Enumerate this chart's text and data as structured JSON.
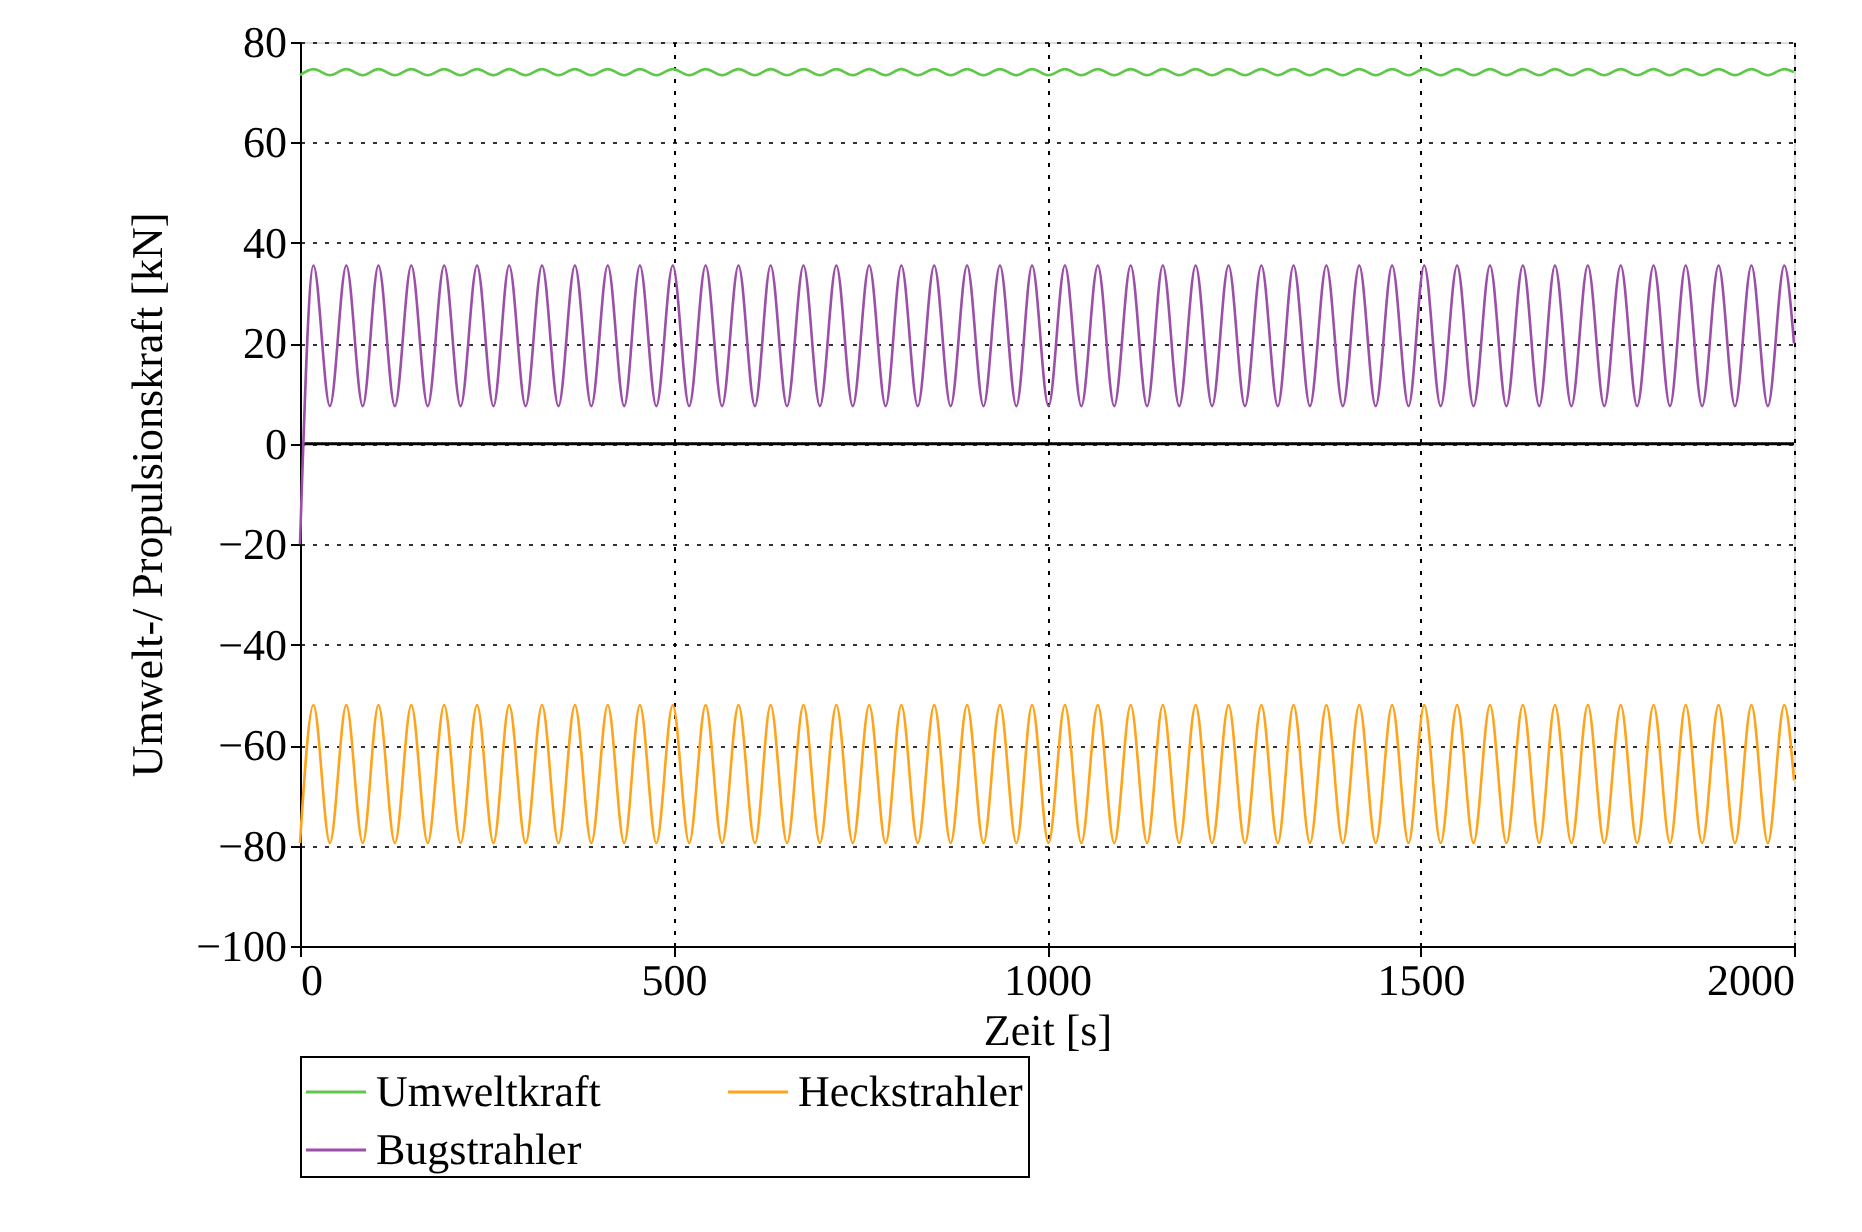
{
  "chart_data": {
    "type": "line",
    "xlabel": "Zeit [s]",
    "ylabel": "Umwelt-/ Propulsionskraft [kN]",
    "x": [
      0,
      18,
      40,
      62,
      84,
      105,
      127,
      149,
      171,
      193,
      215,
      237,
      259,
      280,
      302,
      324,
      346,
      368,
      390,
      412,
      434,
      455,
      477,
      499,
      521,
      543,
      565,
      587,
      609,
      630,
      652,
      674,
      696,
      718,
      740,
      762,
      784,
      805,
      827,
      849,
      871,
      893,
      915,
      937,
      959,
      980,
      1002,
      1024,
      1046,
      1068,
      1090,
      1112,
      1134,
      1155,
      1177,
      1199,
      1221,
      1243,
      1265,
      1287,
      1309,
      1330,
      1352,
      1374,
      1396,
      1418,
      1440,
      1462,
      1484,
      1505,
      1527,
      1549,
      1571,
      1593,
      1615,
      1637,
      1659,
      1680,
      1702,
      1724,
      1746,
      1768,
      1790,
      1812,
      1834,
      1855,
      1877,
      1899,
      1921,
      1943,
      1965,
      1987,
      2000
    ],
    "series": [
      {
        "name": "Umweltkraft",
        "color": "#5fc84a",
        "values": [
          73.4,
          74.6,
          73.4,
          74.6,
          73.4,
          74.6,
          73.4,
          74.6,
          73.4,
          74.6,
          73.4,
          74.6,
          73.4,
          74.6,
          73.4,
          74.6,
          73.4,
          74.6,
          73.4,
          74.6,
          73.4,
          74.6,
          73.4,
          74.6,
          73.4,
          74.6,
          73.4,
          74.6,
          73.4,
          74.6,
          73.4,
          74.6,
          73.4,
          74.6,
          73.4,
          74.6,
          73.4,
          74.6,
          73.4,
          74.6,
          73.4,
          74.6,
          73.4,
          74.6,
          73.4,
          74.6,
          73.4,
          74.6,
          73.4,
          74.6,
          73.4,
          74.6,
          73.4,
          74.6,
          73.4,
          74.6,
          73.4,
          74.6,
          73.4,
          74.6,
          73.4,
          74.6,
          73.4,
          74.6,
          73.4,
          74.6,
          73.4,
          74.6,
          73.4,
          74.6,
          73.4,
          74.6,
          73.4,
          74.6,
          73.4,
          74.6,
          73.4,
          74.6,
          73.4,
          74.6,
          73.4,
          74.6,
          73.4,
          74.6,
          73.4,
          74.6,
          73.4,
          74.6,
          73.4,
          74.6,
          73.4,
          74.6,
          74.0
        ]
      },
      {
        "name": "Heckstrahler",
        "color": "#ffa31a",
        "values": [
          -79.5,
          -52,
          -79.5,
          -52,
          -79.5,
          -52,
          -79.5,
          -52,
          -79.5,
          -52,
          -79.5,
          -52,
          -79.5,
          -52,
          -79.5,
          -52,
          -79.5,
          -52,
          -79.5,
          -52,
          -79.5,
          -52,
          -79.5,
          -52,
          -79.5,
          -52,
          -79.5,
          -52,
          -79.5,
          -52,
          -79.5,
          -52,
          -79.5,
          -52,
          -79.5,
          -52,
          -79.5,
          -52,
          -79.5,
          -52,
          -79.5,
          -52,
          -79.5,
          -52,
          -79.5,
          -52,
          -79.5,
          -52,
          -79.5,
          -52,
          -79.5,
          -52,
          -79.5,
          -52,
          -79.5,
          -52,
          -79.5,
          -52,
          -79.5,
          -52,
          -79.5,
          -52,
          -79.5,
          -52,
          -79.5,
          -52,
          -79.5,
          -52,
          -79.5,
          -52,
          -79.5,
          -52,
          -79.5,
          -52,
          -79.5,
          -52,
          -79.5,
          -52,
          -79.5,
          -52,
          -79.5,
          -52,
          -79.5,
          -52,
          -79.5,
          -52,
          -79.5,
          -52,
          -79.5,
          -52,
          -79.5,
          -52,
          -67
        ]
      },
      {
        "name": "Bugstrahler",
        "color": "#9b4fa8",
        "values": [
          -20,
          35.5,
          7.5,
          35.5,
          7.5,
          35.5,
          7.5,
          35.5,
          7.5,
          35.5,
          7.5,
          35.5,
          7.5,
          35.5,
          7.5,
          35.5,
          7.5,
          35.5,
          7.5,
          35.5,
          7.5,
          35.5,
          7.5,
          35.5,
          7.5,
          35.5,
          7.5,
          35.5,
          7.5,
          35.5,
          7.5,
          35.5,
          7.5,
          35.5,
          7.5,
          35.5,
          7.5,
          35.5,
          7.5,
          35.5,
          7.5,
          35.5,
          7.5,
          35.5,
          7.5,
          35.5,
          7.5,
          35.5,
          7.5,
          35.5,
          7.5,
          35.5,
          7.5,
          35.5,
          7.5,
          35.5,
          7.5,
          35.5,
          7.5,
          35.5,
          7.5,
          35.5,
          7.5,
          35.5,
          7.5,
          35.5,
          7.5,
          35.5,
          7.5,
          35.5,
          7.5,
          35.5,
          7.5,
          35.5,
          7.5,
          35.5,
          7.5,
          35.5,
          7.5,
          35.5,
          7.5,
          35.5,
          7.5,
          35.5,
          7.5,
          35.5,
          7.5,
          35.5,
          7.5,
          35.5,
          7.5,
          35.5,
          20
        ]
      }
    ],
    "xlim": [
      0,
      2000
    ],
    "xticks": [
      0,
      500,
      1000,
      1500,
      2000
    ],
    "ylim": [
      -100,
      80
    ],
    "yticks": [
      -100,
      -80,
      -60,
      -40,
      -20,
      0,
      20,
      40,
      60,
      80
    ],
    "ref_lines": [
      {
        "axis": "y",
        "value": 0,
        "color": "#000000"
      }
    ],
    "grid": true,
    "legend": "bottom",
    "line_style": "solid",
    "marker": "none"
  }
}
